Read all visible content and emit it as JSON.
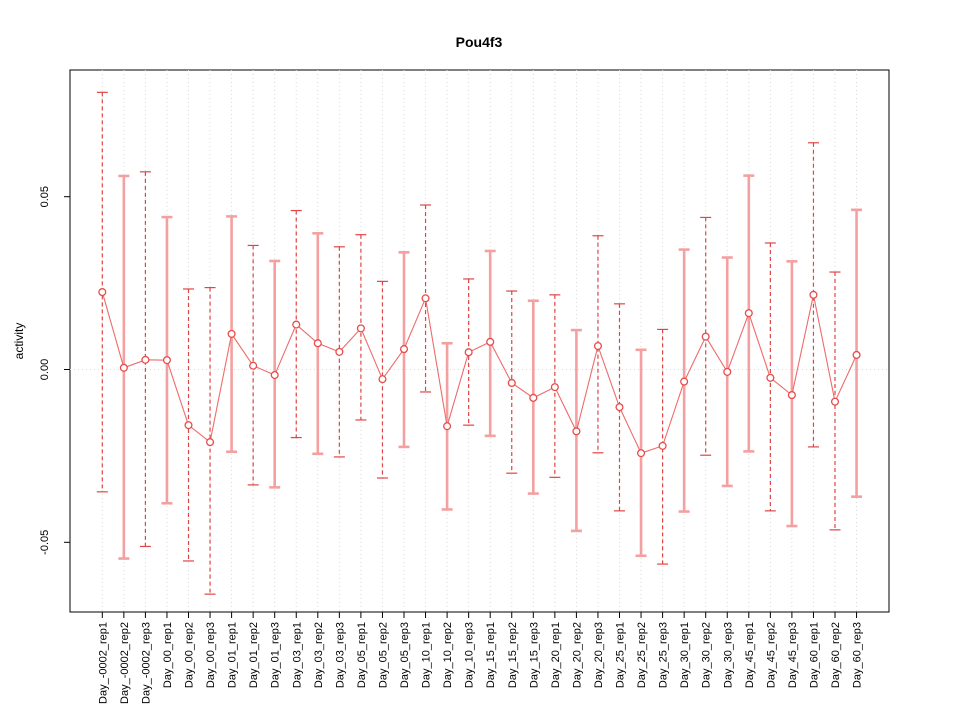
{
  "figure": {
    "title": "Pou4f3",
    "ylabel": "activity"
  },
  "chart_data": {
    "type": "scatter",
    "title": "Pou4f3",
    "xlabel": "",
    "ylabel": "activity",
    "ylim": [
      -0.072,
      0.088
    ],
    "yticks": [
      -0.05,
      0,
      0.05
    ],
    "ytick_labels": [
      "-0.05",
      "0.00",
      "0.05"
    ],
    "grid": "dotted vertical gridline at each category; dotted horizontal line at y=0",
    "legend_position": "none",
    "point_style": "open-circle connected by line segments with error bars",
    "categories": [
      "Day_-0002_rep1",
      "Day_-0002_rep2",
      "Day_-0002_rep3",
      "Day_00_rep1",
      "Day_00_rep2",
      "Day_00_rep3",
      "Day_01_rep1",
      "Day_01_rep2",
      "Day_01_rep3",
      "Day_03_rep1",
      "Day_03_rep2",
      "Day_03_rep3",
      "Day_05_rep1",
      "Day_05_rep2",
      "Day_05_rep3",
      "Day_10_rep1",
      "Day_10_rep2",
      "Day_10_rep3",
      "Day_15_rep1",
      "Day_15_rep2",
      "Day_15_rep3",
      "Day_20_rep1",
      "Day_20_rep2",
      "Day_20_rep3",
      "Day_25_rep1",
      "Day_25_rep2",
      "Day_25_rep3",
      "Day_30_rep1",
      "Day_30_rep2",
      "Day_30_rep3",
      "Day_45_rep1",
      "Day_45_rep2",
      "Day_45_rep3",
      "Day_60_rep1",
      "Day_60_rep2",
      "Day_60_rep3"
    ],
    "series": [
      {
        "name": "activity_mean",
        "values": [
          0.0224,
          0.0005,
          0.0028,
          0.0027,
          -0.0161,
          -0.021,
          0.0103,
          0.0011,
          -0.0016,
          0.013,
          0.0076,
          0.0051,
          0.0119,
          -0.0028,
          0.0059,
          0.0206,
          -0.0164,
          0.005,
          0.008,
          -0.0039,
          -0.0082,
          -0.0051,
          -0.0179,
          0.0068,
          -0.0109,
          -0.0242,
          -0.0221,
          -0.0035,
          0.0095,
          -0.0007,
          0.0163,
          -0.0024,
          -0.0074,
          0.0216,
          -0.0093,
          0.0042
        ]
      },
      {
        "name": "error_low",
        "values": [
          -0.0354,
          -0.0547,
          -0.0512,
          -0.0387,
          -0.0554,
          -0.065,
          -0.0238,
          -0.0334,
          -0.0341,
          -0.0197,
          -0.0244,
          -0.0253,
          -0.0146,
          -0.0314,
          -0.0224,
          -0.0065,
          -0.0405,
          -0.0161,
          -0.0192,
          -0.03,
          -0.0359,
          -0.0312,
          -0.0467,
          -0.0241,
          -0.0409,
          -0.0539,
          -0.0563,
          -0.0411,
          -0.0248,
          -0.0337,
          -0.0237,
          -0.0409,
          -0.0453,
          -0.0224,
          -0.0464,
          -0.0368
        ]
      },
      {
        "name": "error_high",
        "values": [
          0.0802,
          0.056,
          0.0572,
          0.0441,
          0.0233,
          0.0237,
          0.0443,
          0.0359,
          0.0314,
          0.046,
          0.0394,
          0.0355,
          0.039,
          0.0255,
          0.0339,
          0.0476,
          0.0076,
          0.0262,
          0.0343,
          0.0227,
          0.0199,
          0.0216,
          0.0114,
          0.0387,
          0.019,
          0.0057,
          0.0116,
          0.0347,
          0.044,
          0.0324,
          0.0561,
          0.0366,
          0.0313,
          0.0656,
          0.0282,
          0.0462
        ]
      }
    ],
    "whisker_dashed": [
      true,
      false,
      true,
      false,
      true,
      true,
      false,
      true,
      false,
      true,
      false,
      true,
      true,
      true,
      false,
      true,
      false,
      true,
      false,
      true,
      false,
      true,
      false,
      true,
      true,
      false,
      true,
      false,
      true,
      false,
      false,
      true,
      false,
      true,
      true,
      false
    ],
    "colors": {
      "point": "#e84b4b",
      "connect_line": "#ef6a6a",
      "whisker_dashed": "#e04545",
      "whisker_solid": "#f5a0a0",
      "grid": "#d9d9d9",
      "frame": "#000000"
    }
  }
}
